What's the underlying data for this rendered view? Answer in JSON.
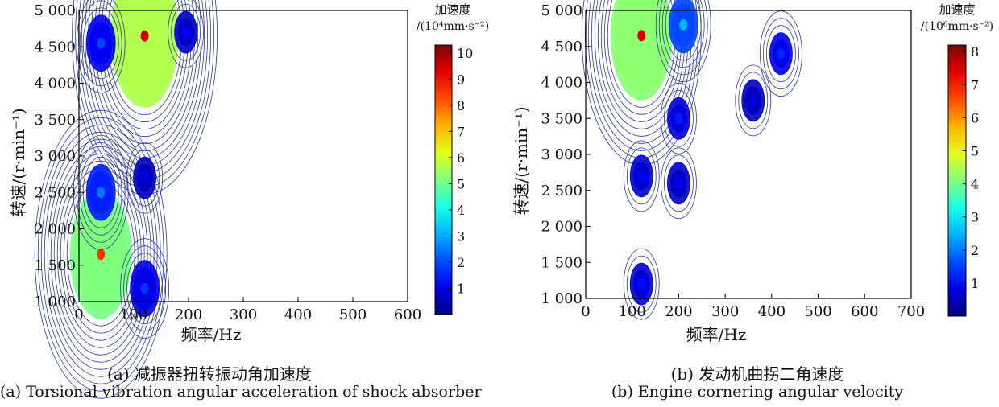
{
  "chart_data": [
    {
      "type": "heatmap",
      "panel": "a",
      "xlabel": "频率/Hz",
      "ylabel": "转速/(r·min⁻¹)",
      "xlim": [
        0,
        600
      ],
      "ylim": [
        1000,
        5000
      ],
      "xticks": [
        0,
        100,
        200,
        300,
        400,
        500,
        600
      ],
      "xtick_labels": [
        "0",
        "100",
        "200",
        "300",
        "400",
        "500",
        "600"
      ],
      "yticks": [
        1000,
        1500,
        2000,
        2500,
        3000,
        3500,
        4000,
        4500,
        5000
      ],
      "ytick_labels": [
        "1 000",
        "1 500",
        "2 000",
        "2 500",
        "3 000",
        "3 500",
        "4 000",
        "4 500",
        "5 000"
      ],
      "colorbar": {
        "title_line1": "加速度",
        "title_line2": "/(10⁴mm·s⁻²)",
        "min": 0,
        "max": 10.3,
        "ticks": [
          1,
          2,
          3,
          4,
          5,
          6,
          7,
          8,
          9,
          10
        ],
        "tick_labels": [
          "1",
          "2",
          "3",
          "4",
          "5",
          "6",
          "7",
          "8",
          "9",
          "10"
        ],
        "colormap": "jet"
      },
      "hotspots": [
        {
          "freq": 40,
          "speed": 1650,
          "value": 8.5
        },
        {
          "freq": 40,
          "speed": 2500,
          "value": 2.5
        },
        {
          "freq": 120,
          "speed": 4650,
          "value": 9.5
        },
        {
          "freq": 40,
          "speed": 4550,
          "value": 2.0
        },
        {
          "freq": 120,
          "speed": 1180,
          "value": 1.8
        },
        {
          "freq": 120,
          "speed": 2700,
          "value": 1.0
        },
        {
          "freq": 195,
          "speed": 4700,
          "value": 1.2
        }
      ],
      "caption_cn": "(a) 减振器扭转振动角加速度",
      "caption_en": "(a) Torsional vibration angular acceleration of shock absorber"
    },
    {
      "type": "heatmap",
      "panel": "b",
      "xlabel": "频率/Hz",
      "ylabel": "转速/(r·min⁻¹)",
      "xlim": [
        0,
        700
      ],
      "ylim": [
        1000,
        5000
      ],
      "xticks": [
        0,
        100,
        200,
        300,
        400,
        500,
        600,
        700
      ],
      "xtick_labels": [
        "0",
        "100",
        "200",
        "300",
        "400",
        "500",
        "600",
        "700"
      ],
      "yticks": [
        1000,
        1500,
        2000,
        2500,
        3000,
        3500,
        4000,
        4500,
        5000
      ],
      "ytick_labels": [
        "1 000",
        "1 500",
        "2 000",
        "2 500",
        "3 000",
        "3 500",
        "4 000",
        "4 500",
        "5 000"
      ],
      "colorbar": {
        "title_line1": "加速度",
        "title_line2": "/(10⁶mm·s⁻²)",
        "min": 0,
        "max": 8.2,
        "ticks": [
          1,
          2,
          3,
          4,
          5,
          6,
          7,
          8
        ],
        "tick_labels": [
          "1",
          "2",
          "3",
          "4",
          "5",
          "6",
          "7",
          "8"
        ],
        "colormap": "jet"
      },
      "hotspots": [
        {
          "freq": 120,
          "speed": 4650,
          "value": 7.5
        },
        {
          "freq": 210,
          "speed": 4800,
          "value": 2.5
        },
        {
          "freq": 120,
          "speed": 2700,
          "value": 1.0
        },
        {
          "freq": 200,
          "speed": 3500,
          "value": 1.2
        },
        {
          "freq": 200,
          "speed": 2600,
          "value": 0.9
        },
        {
          "freq": 120,
          "speed": 1200,
          "value": 1.1
        },
        {
          "freq": 360,
          "speed": 3750,
          "value": 0.8
        },
        {
          "freq": 420,
          "speed": 4400,
          "value": 1.3
        }
      ],
      "caption_cn": "(b) 发动机曲拐二角速度",
      "caption_en": "(b) Engine cornering angular velocity"
    }
  ]
}
